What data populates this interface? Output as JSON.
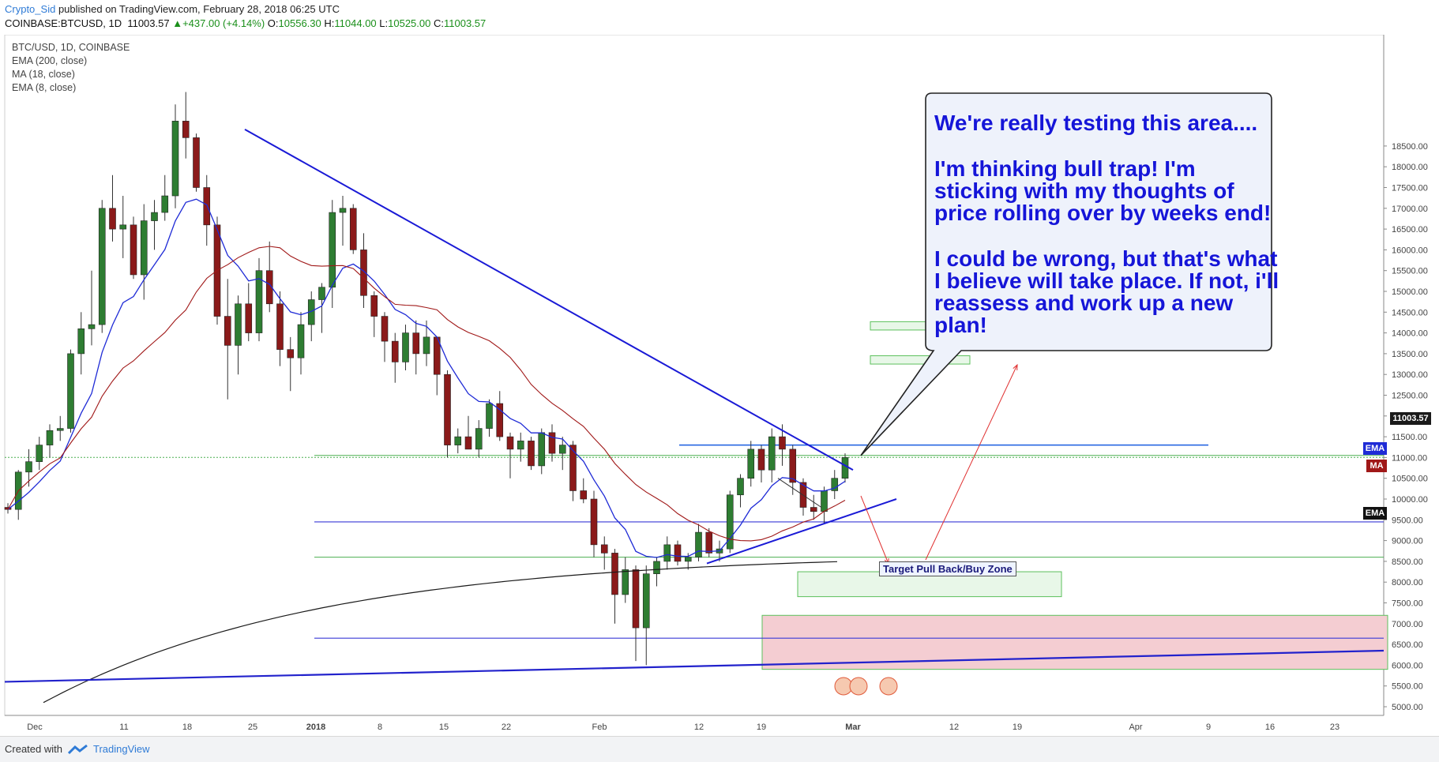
{
  "header": {
    "author": "Crypto_Sid",
    "published_text": "published on TradingView.com, February 28, 2018 06:25 UTC",
    "symbol": "COINBASE:BTCUSD, 1D",
    "last": "11003.57",
    "change": "+437.00 (+4.14%)",
    "open_label": "O:",
    "open": "10556.30",
    "high_label": "H:",
    "high": "11044.00",
    "low_label": "L:",
    "low": "10525.00",
    "close_label": "C:",
    "close": "11003.57"
  },
  "legend": {
    "title": "BTC/USD, 1D, COINBASE",
    "ema200": "EMA (200, close)",
    "ma18": "MA (18, close)",
    "ema8": "EMA (8, close)"
  },
  "callout": {
    "p1": "We're really testing this area....",
    "p2": "I'm thinking bull trap!   I'm sticking with my thoughts of price rolling over by weeks end!",
    "p3": "I could be wrong, but that's what I believe will take place. If not, i'll reassess and work up a new plan!"
  },
  "target_zone_label": "Target Pull Back/Buy Zone",
  "price_badge": "11003.57",
  "badges": {
    "ema_blue": "EMA",
    "ma_red": "MA",
    "ema_black": "EMA"
  },
  "colors": {
    "up": "#2e7d32",
    "down": "#8b1a1a",
    "ema8": "#1f2bd6",
    "ma18": "#a01818",
    "ema200": "#1a1a1a",
    "trendline": "#1a1ad6",
    "support_green": "#4caf50"
  },
  "footer": {
    "created_with": "Created with",
    "brand": "TradingView"
  },
  "chart_data": {
    "type": "candlestick",
    "y_axis_ticks": [
      "18500.00",
      "18000.00",
      "17500.00",
      "17000.00",
      "16500.00",
      "16000.00",
      "15500.00",
      "15000.00",
      "14500.00",
      "14000.00",
      "13500.00",
      "13000.00",
      "12500.00",
      "12000.00",
      "11500.00",
      "11000.00",
      "10500.00",
      "10000.00",
      "9500.00",
      "9000.00",
      "8500.00",
      "8000.00",
      "7500.00",
      "7000.00",
      "6500.00",
      "6000.00",
      "5500.00",
      "5000.00"
    ],
    "ylim": [
      4800,
      18900
    ],
    "x_axis_ticks": [
      "Dec",
      "11",
      "18",
      "25",
      "2018",
      "8",
      "15",
      "22",
      "Feb",
      "12",
      "19",
      "Mar",
      "12",
      "19",
      "Apr",
      "9",
      "16",
      "23"
    ],
    "levels": {
      "resistance_blue": 11300,
      "support_green_1": 11050,
      "support_blue_1": 9450,
      "support_green_2": 8600,
      "support_blue_2": 6650
    },
    "ohlc": [
      [
        9800,
        9900,
        9650,
        9750
      ],
      [
        9750,
        10700,
        9500,
        10650
      ],
      [
        10650,
        11200,
        10300,
        10900
      ],
      [
        10900,
        11500,
        10700,
        11300
      ],
      [
        11300,
        11800,
        11000,
        11650
      ],
      [
        11650,
        12000,
        11400,
        11700
      ],
      [
        11700,
        13600,
        11600,
        13500
      ],
      [
        13500,
        14500,
        13000,
        14100
      ],
      [
        14100,
        15500,
        13700,
        14200
      ],
      [
        14200,
        17200,
        14000,
        17000
      ],
      [
        17000,
        17800,
        16200,
        16500
      ],
      [
        16500,
        17300,
        15800,
        16600
      ],
      [
        16600,
        16800,
        15300,
        15400
      ],
      [
        15400,
        17100,
        14800,
        16700
      ],
      [
        16700,
        17200,
        16000,
        16900
      ],
      [
        16900,
        17800,
        16700,
        17300
      ],
      [
        17300,
        19500,
        17000,
        19100
      ],
      [
        19100,
        19800,
        18200,
        18700
      ],
      [
        18700,
        18800,
        17400,
        17500
      ],
      [
        17500,
        17800,
        16100,
        16600
      ],
      [
        16600,
        16800,
        14200,
        14400
      ],
      [
        14400,
        15300,
        12400,
        13700
      ],
      [
        13700,
        14900,
        13000,
        14700
      ],
      [
        14700,
        15200,
        13800,
        14000
      ],
      [
        14000,
        15800,
        13800,
        15500
      ],
      [
        15500,
        16200,
        14500,
        14700
      ],
      [
        14700,
        15000,
        13200,
        13600
      ],
      [
        13600,
        13900,
        12600,
        13400
      ],
      [
        13400,
        14500,
        13000,
        14200
      ],
      [
        14200,
        15000,
        13800,
        14800
      ],
      [
        14800,
        15200,
        14000,
        15100
      ],
      [
        15100,
        17200,
        14600,
        16900
      ],
      [
        16900,
        17300,
        16100,
        17000
      ],
      [
        17000,
        17100,
        15900,
        16000
      ],
      [
        16000,
        16400,
        14600,
        14900
      ],
      [
        14900,
        15000,
        13900,
        14400
      ],
      [
        14400,
        14500,
        13300,
        13800
      ],
      [
        13800,
        14000,
        12800,
        13300
      ],
      [
        13300,
        14200,
        13100,
        14000
      ],
      [
        14000,
        14300,
        13000,
        13500
      ],
      [
        13500,
        14300,
        13200,
        13900
      ],
      [
        13900,
        13900,
        12500,
        13000
      ],
      [
        13000,
        13100,
        11000,
        11300
      ],
      [
        11300,
        11700,
        11100,
        11500
      ],
      [
        11500,
        12000,
        11200,
        11200
      ],
      [
        11200,
        11900,
        11000,
        11700
      ],
      [
        11700,
        12400,
        11500,
        12300
      ],
      [
        12300,
        12600,
        11400,
        11500
      ],
      [
        11500,
        11600,
        10500,
        11200
      ],
      [
        11200,
        11600,
        10900,
        11400
      ],
      [
        11400,
        11500,
        10700,
        10800
      ],
      [
        10800,
        11700,
        10600,
        11600
      ],
      [
        11600,
        11800,
        10900,
        11100
      ],
      [
        11100,
        11500,
        10700,
        11300
      ],
      [
        11300,
        11400,
        9950,
        10200
      ],
      [
        10200,
        10500,
        9900,
        10000
      ],
      [
        10000,
        10200,
        8600,
        8900
      ],
      [
        8900,
        9100,
        8300,
        8700
      ],
      [
        8700,
        8800,
        7000,
        7700
      ],
      [
        7700,
        8600,
        7500,
        8300
      ],
      [
        8300,
        8400,
        6100,
        6900
      ],
      [
        6900,
        8400,
        6000,
        8200
      ],
      [
        8200,
        8600,
        7900,
        8500
      ],
      [
        8500,
        9100,
        8300,
        8900
      ],
      [
        8900,
        9000,
        8400,
        8500
      ],
      [
        8500,
        8700,
        8300,
        8600
      ],
      [
        8600,
        9400,
        8500,
        9200
      ],
      [
        9200,
        9300,
        8600,
        8700
      ],
      [
        8700,
        9000,
        8500,
        8800
      ],
      [
        8800,
        10200,
        8700,
        10100
      ],
      [
        10100,
        10600,
        9800,
        10500
      ],
      [
        10500,
        11400,
        10300,
        11200
      ],
      [
        11200,
        11300,
        10400,
        10700
      ],
      [
        10700,
        11700,
        10400,
        11500
      ],
      [
        11500,
        11800,
        10800,
        11200
      ],
      [
        11200,
        11300,
        10100,
        10400
      ],
      [
        10400,
        10500,
        9600,
        9800
      ],
      [
        9800,
        10100,
        9500,
        9700
      ],
      [
        9700,
        10300,
        9400,
        10200
      ],
      [
        10200,
        10700,
        10000,
        10500
      ],
      [
        10500,
        11100,
        10400,
        11000
      ]
    ]
  }
}
